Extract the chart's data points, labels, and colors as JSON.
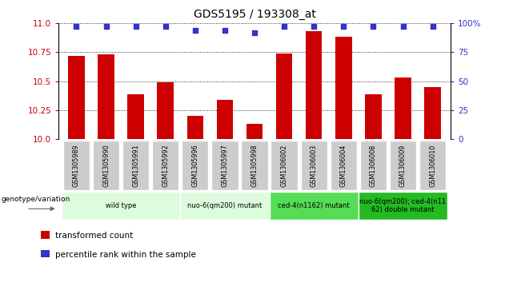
{
  "title": "GDS5195 / 193308_at",
  "samples": [
    "GSM1305989",
    "GSM1305990",
    "GSM1305991",
    "GSM1305992",
    "GSM1305996",
    "GSM1305997",
    "GSM1305998",
    "GSM1306002",
    "GSM1306003",
    "GSM1306004",
    "GSM1306008",
    "GSM1306009",
    "GSM1306010"
  ],
  "bar_values": [
    10.72,
    10.73,
    10.39,
    10.49,
    10.2,
    10.34,
    10.13,
    10.74,
    10.93,
    10.88,
    10.39,
    10.53,
    10.45
  ],
  "percentile_values": [
    10.97,
    10.97,
    10.97,
    10.97,
    10.94,
    10.94,
    10.92,
    10.97,
    10.975,
    10.97,
    10.97,
    10.97,
    10.97
  ],
  "ymin": 10.0,
  "ymax": 11.0,
  "yticks": [
    10.0,
    10.25,
    10.5,
    10.75,
    11.0
  ],
  "right_yticks_vals": [
    10.0,
    10.25,
    10.5,
    10.75,
    11.0
  ],
  "right_yticks_labels": [
    "0",
    "25",
    "50",
    "75",
    "100%"
  ],
  "bar_color": "#cc0000",
  "percentile_color": "#3333cc",
  "groups": [
    {
      "label": "wild type",
      "start": 0,
      "end": 3,
      "color": "#ddfcdd"
    },
    {
      "label": "nuo-6(qm200) mutant",
      "start": 4,
      "end": 6,
      "color": "#ddfcdd"
    },
    {
      "label": "ced-4(n1162) mutant",
      "start": 7,
      "end": 9,
      "color": "#55dd55"
    },
    {
      "label": "nuo-6(qm200); ced-4(n11\n62) double mutant",
      "start": 10,
      "end": 12,
      "color": "#22bb22"
    }
  ],
  "genotype_label": "genotype/variation",
  "legend_items": [
    {
      "color": "#cc0000",
      "label": "transformed count"
    },
    {
      "color": "#3333cc",
      "label": "percentile rank within the sample"
    }
  ],
  "title_fontsize": 10,
  "sample_bg_color": "#d0d0d0",
  "sample_cell_edge_color": "#ffffff",
  "plot_bg_color": "#ffffff"
}
